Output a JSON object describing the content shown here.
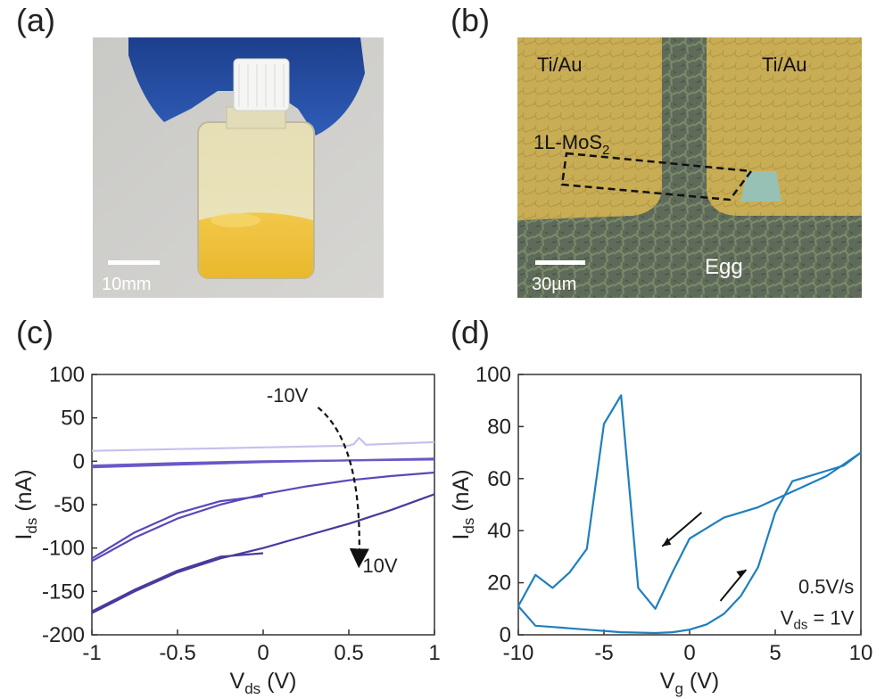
{
  "panels": {
    "a": {
      "letter": "(a)",
      "scale_label": "10mm"
    },
    "b": {
      "letter": "(b)",
      "label_left": "Ti/Au",
      "label_right": "Ti/Au",
      "flake_label_main": "1L-MoS",
      "flake_label_sub": "2",
      "substrate_label": "Egg",
      "scale_label": "30µm"
    },
    "c": {
      "letter": "(c)"
    },
    "d": {
      "letter": "(d)"
    }
  },
  "colors": {
    "text": "#222222",
    "line_d": "#1f7fbf",
    "purple_dark": "#4a3a9c",
    "purple_mid": "#6a58c8",
    "purple_light": "#c7c0ee"
  },
  "chart_data": [
    {
      "id": "c",
      "type": "line",
      "xlabel_main": "V",
      "xlabel_sub": "ds",
      "xlabel_unit": "(V)",
      "ylabel_main": "I",
      "ylabel_sub": "ds",
      "ylabel_unit": "(nA)",
      "xlim": [
        -1,
        1
      ],
      "ylim": [
        -200,
        100
      ],
      "xticks": [
        "-1",
        "-0.5",
        "0",
        "0.5",
        "1"
      ],
      "yticks": [
        "100",
        "50",
        "0",
        "-50",
        "-100",
        "-150",
        "-200"
      ],
      "annotation_top": "-10V",
      "annotation_bottom": "10V",
      "series": [
        {
          "name": "-10V",
          "color": "#c7c0ee",
          "x": [
            -1,
            -0.5,
            0,
            0.5,
            0.53,
            0.56,
            0.6,
            1
          ],
          "y": [
            12,
            14,
            16,
            18,
            20,
            27,
            19,
            22
          ]
        },
        {
          "name": "mid-1",
          "color": "#6a58c8",
          "x": [
            -1,
            -0.5,
            0,
            0.5,
            1
          ],
          "y": [
            -7,
            -4,
            -1,
            1,
            3
          ]
        },
        {
          "name": "mid-2",
          "color": "#6a58c8",
          "x": [
            -1,
            -0.5,
            0,
            0.5,
            1
          ],
          "y": [
            -5,
            -2,
            0,
            1,
            2
          ]
        },
        {
          "name": "V5-a",
          "color": "#5a48b8",
          "x": [
            -1,
            -0.75,
            -0.5,
            -0.25,
            0,
            0.25,
            0.5,
            0.75,
            1
          ],
          "y": [
            -115,
            -88,
            -66,
            -50,
            -38,
            -29,
            -22,
            -17,
            -13
          ]
        },
        {
          "name": "V5-b",
          "color": "#5a48b8",
          "x": [
            -1,
            -0.75,
            -0.5,
            -0.25,
            0
          ],
          "y": [
            -112,
            -82,
            -60,
            -46,
            -40
          ]
        },
        {
          "name": "10V-a",
          "color": "#4a3a9c",
          "x": [
            -1,
            -0.75,
            -0.5,
            -0.25,
            0,
            0.25,
            0.5,
            0.75,
            1
          ],
          "y": [
            -175,
            -150,
            -128,
            -112,
            -100,
            -86,
            -72,
            -56,
            -38
          ]
        },
        {
          "name": "10V-b",
          "color": "#4a3a9c",
          "x": [
            -1,
            -0.75,
            -0.5,
            -0.25,
            0
          ],
          "y": [
            -173,
            -148,
            -126,
            -110,
            -106
          ]
        }
      ]
    },
    {
      "id": "d",
      "type": "line",
      "xlabel_main": "V",
      "xlabel_sub": "g",
      "xlabel_unit": "(V)",
      "ylabel_main": "I",
      "ylabel_sub": "ds",
      "ylabel_unit": "(nA)",
      "xlim": [
        -10,
        10
      ],
      "ylim": [
        0,
        100
      ],
      "xticks": [
        "-10",
        "-5",
        "0",
        "5",
        "10"
      ],
      "yticks": [
        "100",
        "80",
        "60",
        "40",
        "20",
        "0"
      ],
      "annotation_rate": "0.5V/s",
      "annotation_vds_main": "V",
      "annotation_vds_sub": "ds",
      "annotation_vds_value": " = 1V",
      "series": [
        {
          "name": "forward",
          "color": "#1f7fbf",
          "x": [
            -10,
            -9,
            -8,
            -6,
            -4,
            -2,
            -1,
            0,
            1,
            2,
            3,
            4,
            5,
            6,
            7,
            8,
            9,
            10
          ],
          "y": [
            11,
            3.5,
            3,
            2,
            1,
            0.7,
            1,
            2,
            4,
            8,
            15,
            26,
            47,
            59,
            61,
            63,
            65,
            70
          ]
        },
        {
          "name": "reverse",
          "color": "#1f7fbf",
          "x": [
            10,
            8,
            6,
            4,
            2,
            1,
            0,
            -1,
            -2,
            -3,
            -4,
            -5,
            -6,
            -7,
            -8,
            -9,
            -10
          ],
          "y": [
            70,
            61,
            55,
            49,
            45,
            41,
            37,
            24,
            10,
            18,
            92,
            81,
            33,
            24,
            18,
            23,
            11
          ]
        }
      ]
    }
  ]
}
